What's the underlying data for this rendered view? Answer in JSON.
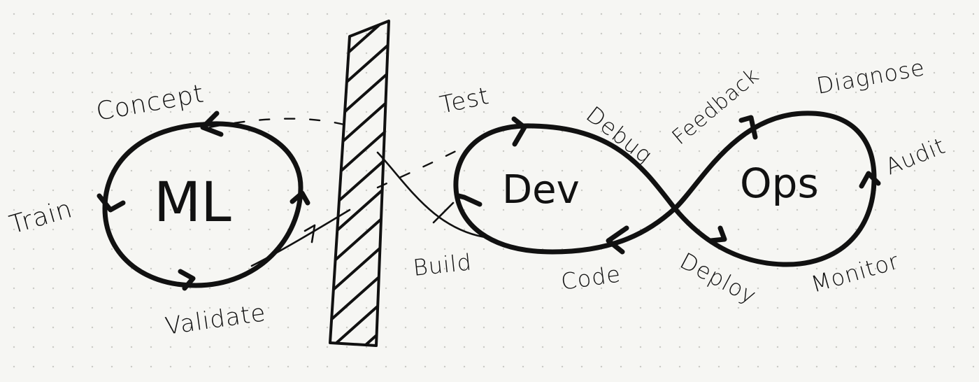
{
  "diagram": {
    "ml_loop": {
      "title": "ML",
      "stages": [
        "Concept",
        "Train",
        "Validate"
      ]
    },
    "devops_loop": {
      "dev_title": "Dev",
      "ops_title": "Ops",
      "dev_stages": [
        "Test",
        "Debug",
        "Build",
        "Code"
      ],
      "ops_stages": [
        "Feedback",
        "Diagnose",
        "Audit",
        "Monitor",
        "Deploy"
      ]
    },
    "colors": {
      "ink": "#111111",
      "paper": "#f6f6f3",
      "dot_grid": "#c9c9c4"
    }
  }
}
